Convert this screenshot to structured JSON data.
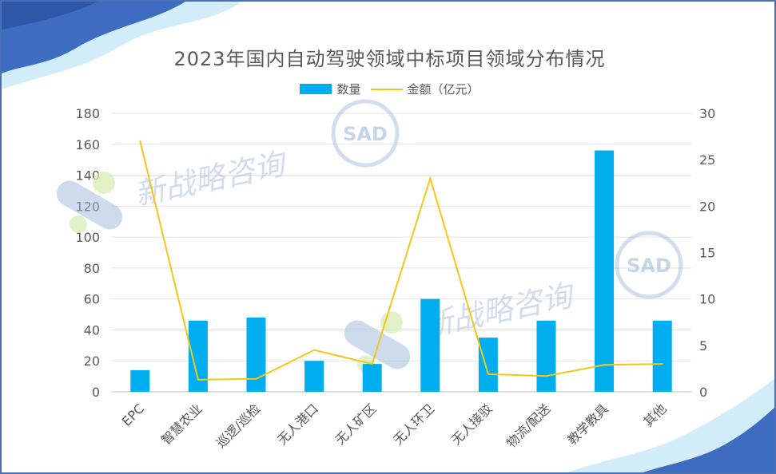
{
  "chart_data": {
    "type": "bar",
    "title": "2023年国内自动驾驶领域中标项目领域分布情况",
    "categories": [
      "EPC",
      "智慧农业",
      "巡逻/巡检",
      "无人港口",
      "无人矿区",
      "无人环卫",
      "无人接驳",
      "物流/配送",
      "教学教具",
      "其他"
    ],
    "series": [
      {
        "name": "数量",
        "type": "bar",
        "axis": "left",
        "color": "#00aeef",
        "values": [
          14,
          46,
          48,
          20,
          18,
          60,
          35,
          46,
          156,
          46
        ]
      },
      {
        "name": "金额（亿元）",
        "type": "line",
        "axis": "right",
        "color": "#f5c518",
        "values": [
          27.0,
          1.3,
          1.4,
          4.5,
          3.0,
          23.0,
          1.9,
          1.7,
          2.9,
          3.0
        ]
      }
    ],
    "ylim_left": [
      0,
      180
    ],
    "yticks_left": [
      0,
      20,
      40,
      60,
      80,
      100,
      120,
      140,
      160,
      180
    ],
    "ylim_right": [
      0,
      30
    ],
    "yticks_right": [
      0,
      5,
      10,
      15,
      20,
      25,
      30
    ],
    "legend_position": "top-center",
    "grid": true
  },
  "watermark": {
    "text": "新战略咨询",
    "logo_text": "SAD"
  }
}
